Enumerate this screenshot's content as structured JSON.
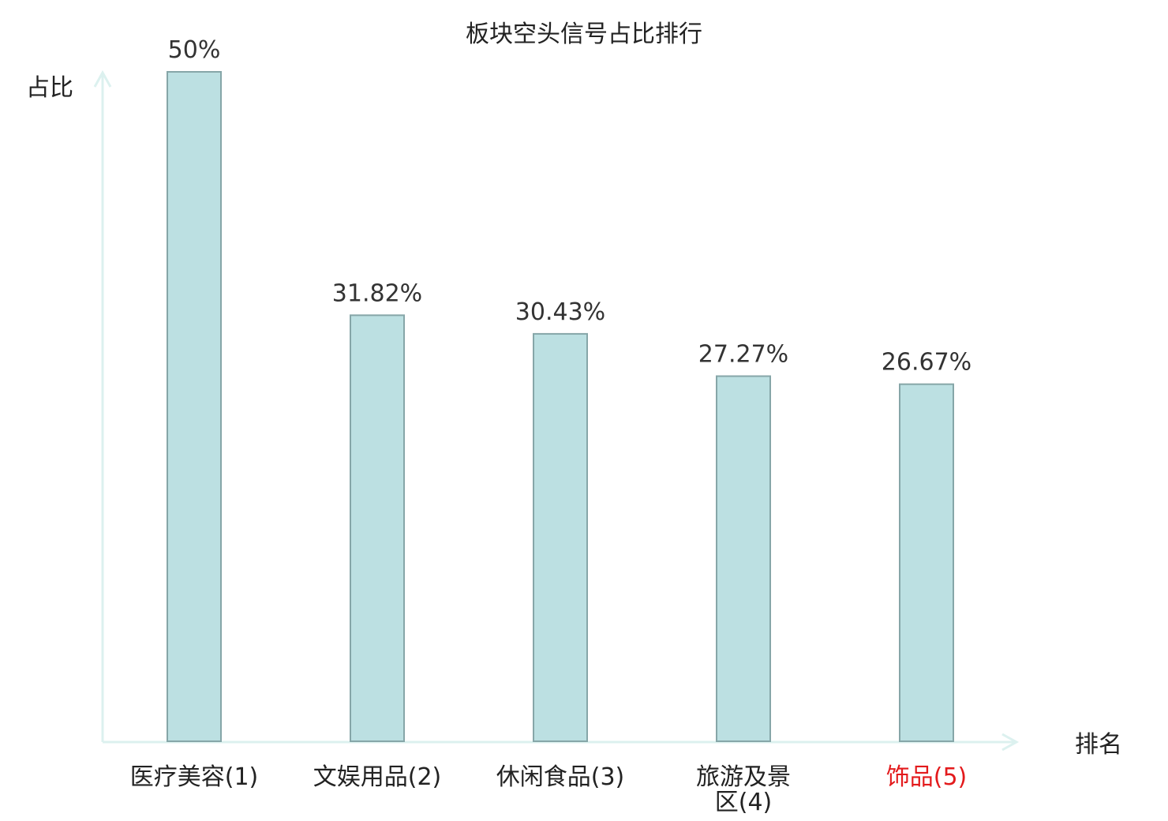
{
  "chart_data": {
    "type": "bar",
    "title": "板块空头信号占比排行",
    "xlabel": "排名",
    "ylabel": "占比",
    "categories": [
      "医疗美容(1)",
      "文娱用品(2)",
      "休闲食品(3)",
      "旅游及景区(4)",
      "饰品(5)"
    ],
    "category_lines": [
      [
        "医疗美容(1)"
      ],
      [
        "文娱用品(2)"
      ],
      [
        "休闲食品(3)"
      ],
      [
        "旅游及景",
        "区(4)"
      ],
      [
        "饰品(5)"
      ]
    ],
    "highlight_index": 4,
    "values": [
      50,
      31.82,
      30.43,
      27.27,
      26.67
    ],
    "value_labels": [
      "50%",
      "31.82%",
      "30.43%",
      "27.27%",
      "26.67%"
    ],
    "ylim": [
      0,
      50
    ],
    "grid": false,
    "colors": {
      "bar_fill": "#bce0e2",
      "bar_stroke": "#86a6a8",
      "axis": "#dcf1ef",
      "label_default": "#222222",
      "label_highlight": "#e31a1c"
    }
  }
}
